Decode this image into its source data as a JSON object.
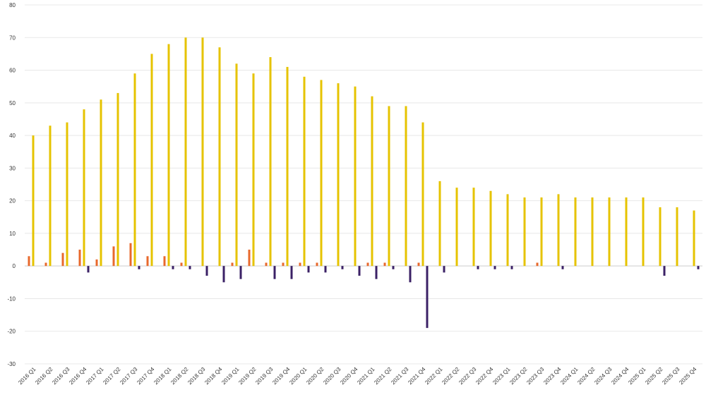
{
  "chart_data": {
    "type": "bar",
    "title": "",
    "xlabel": "",
    "ylabel": "",
    "ylim": [
      -30,
      80
    ],
    "yticks": [
      -30,
      -20,
      -10,
      0,
      10,
      20,
      30,
      40,
      50,
      60,
      70,
      80
    ],
    "grid": true,
    "legend": "none",
    "categories": [
      "2016 Q1",
      "2016 Q2",
      "2016 Q3",
      "2016 Q4",
      "2017 Q1",
      "2017 Q2",
      "2017 Q3",
      "2017 Q4",
      "2018 Q1",
      "2018 Q2",
      "2018 Q3",
      "2018 Q4",
      "2019 Q1",
      "2019 Q2",
      "2019 Q3",
      "2019 Q4",
      "2020 Q1",
      "2020 Q2",
      "2020 Q3",
      "2020 Q4",
      "2021 Q1",
      "2021 Q2",
      "2021 Q3",
      "2021 Q4",
      "2022 Q1",
      "2022 Q2",
      "2022 Q3",
      "2022 Q4",
      "2023 Q1",
      "2023 Q2",
      "2023 Q3",
      "2023 Q4",
      "2024 Q1",
      "2024 Q2",
      "2024 Q3",
      "2024 Q4",
      "2025 Q1",
      "2025 Q2",
      "2025 Q3",
      "2025 Q4"
    ],
    "series": [
      {
        "color": "#e8692c",
        "values": [
          3,
          1,
          4,
          5,
          2,
          6,
          7,
          3,
          3,
          1,
          0,
          0,
          1,
          5,
          1,
          1,
          1,
          1,
          0,
          0,
          1,
          1,
          0,
          1,
          0,
          0,
          0,
          0,
          0,
          0,
          1,
          0,
          0,
          0,
          0,
          0,
          0,
          0,
          0,
          0
        ]
      },
      {
        "color": "#e6c300",
        "values": [
          40,
          43,
          44,
          48,
          51,
          53,
          59,
          65,
          68,
          70,
          70,
          67,
          62,
          59,
          64,
          61,
          58,
          57,
          56,
          55,
          52,
          49,
          49,
          44,
          26,
          24,
          24,
          23,
          22,
          21,
          21,
          22,
          21,
          21,
          21,
          21,
          21,
          18,
          18,
          17
        ]
      },
      {
        "color": "#3b2166",
        "values": [
          0,
          0,
          0,
          -2,
          0,
          0,
          -1,
          0,
          -1,
          -1,
          -3,
          -5,
          -4,
          0,
          -4,
          -4,
          -2,
          -2,
          -1,
          -3,
          -4,
          -1,
          -5,
          -19,
          -2,
          0,
          -1,
          -1,
          -1,
          0,
          0,
          -1,
          0,
          0,
          0,
          0,
          0,
          -3,
          0,
          -1
        ]
      }
    ]
  }
}
